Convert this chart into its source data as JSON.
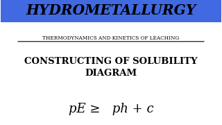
{
  "title": "HYDROMETALLURGY",
  "subtitle": "THERMODYNAMICS AND KINETICS OF LEACHING",
  "heading": "CONSTRUCTING OF SOLUBILITY\nDIAGRAM",
  "formula": "pE ≥   ph + c",
  "title_bg_color": "#4169E1",
  "title_text_color": "#000000",
  "bg_color": "#FFFFFF",
  "subtitle_text_color": "#000000",
  "heading_text_color": "#000000",
  "formula_text_color": "#000000"
}
